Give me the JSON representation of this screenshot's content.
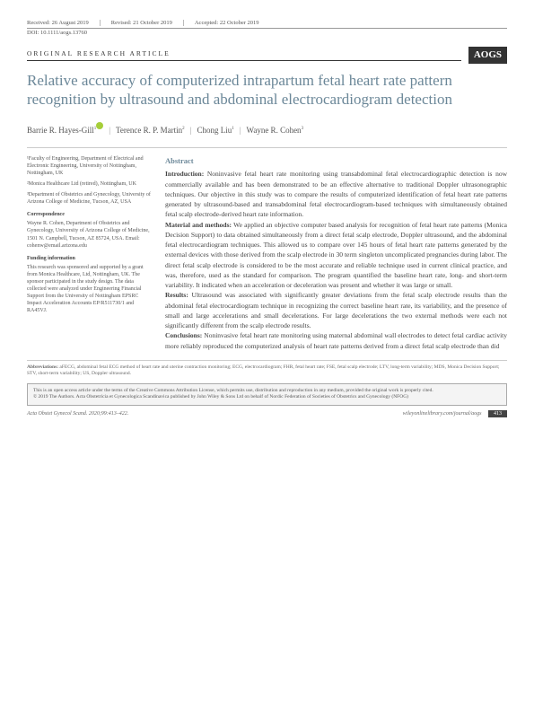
{
  "header": {
    "received": "Received: 26 August 2019",
    "revised": "Revised: 21 October 2019",
    "accepted": "Accepted: 22 October 2019",
    "doi": "DOI: 10.1111/aogs.13760"
  },
  "article_type": "ORIGINAL RESEARCH ARTICLE",
  "badge": {
    "acronym": "AOGS",
    "sub": ""
  },
  "title": "Relative accuracy of computerized intrapartum fetal heart rate pattern recognition by ultrasound and abdominal electrocardiogram detection",
  "authors": [
    {
      "name": "Barrie R. Hayes-Gill",
      "sup": "1",
      "orcid": true
    },
    {
      "name": "Terence R. P. Martin",
      "sup": "2"
    },
    {
      "name": "Chong Liu",
      "sup": "1"
    },
    {
      "name": "Wayne R. Cohen",
      "sup": "3"
    }
  ],
  "affiliations": [
    "¹Faculty of Engineering, Department of Electrical and Electronic Engineering, University of Nottingham, Nottingham, UK",
    "²Monica Healthcare Ltd (retired), Nottingham, UK",
    "³Department of Obstetrics and Gynecology, University of Arizona College of Medicine, Tucson, AZ, USA"
  ],
  "correspondence_head": "Correspondence",
  "correspondence": "Wayne R. Cohen, Department of Obstetrics and Gynecology, University of Arizona College of Medicine, 1501 N. Campbell, Tucson, AZ 85724, USA. Email: cohenw@email.arizona.edu",
  "funding_head": "Funding information",
  "funding": "This research was sponsored and supported by a grant from Monica Healthcare, Ltd, Nottingham, UK. The sponsor participated in the study design. The data collected were analyzed under Engineering Financial Support from the University of Nottingham EPSRC Impact Acceleration Accounts EP/R511730/1 and RA45VJ.",
  "abstract": {
    "head": "Abstract",
    "intro_label": "Introduction:",
    "intro": " Noninvasive fetal heart rate monitoring using transabdominal fetal electrocardiographic detection is now commercially available and has been demonstrated to be an effective alternative to traditional Doppler ultrasonographic techniques. Our objective in this study was to compare the results of computerized identification of fetal heart rate patterns generated by ultrasound-based and transabdominal fetal electrocardiogram-based techniques with simultaneously obtained fetal scalp electrode-derived heart rate information.",
    "methods_label": "Material and methods:",
    "methods": " We applied an objective computer based analysis for recognition of fetal heart rate patterns (Monica Decision Support) to data obtained simultaneously from a direct fetal scalp electrode, Doppler ultrasound, and the abdominal fetal electrocardiogram techniques. This allowed us to compare over 145 hours of fetal heart rate patterns generated by the external devices with those derived from the scalp electrode in 30 term singleton uncomplicated pregnancies during labor. The direct fetal scalp electrode is considered to be the most accurate and reliable technique used in current clinical practice, and was, therefore, used as the standard for comparison. The program quantified the baseline heart rate, long- and short-term variability. It indicated when an acceleration or deceleration was present and whether it was large or small.",
    "results_label": "Results:",
    "results": " Ultrasound was associated with significantly greater deviations from the fetal scalp electrode results than the abdominal fetal electrocardiogram technique in recognizing the correct baseline heart rate, its variability, and the presence of small and large accelerations and small decelerations. For large decelerations the two external methods were each not significantly different from the scalp electrode results.",
    "conclusions_label": "Conclusions:",
    "conclusions": " Noninvasive fetal heart rate monitoring using maternal abdominal wall electrodes to detect fetal cardiac activity more reliably reproduced the computerized analysis of heart rate patterns derived from a direct fetal scalp electrode than did"
  },
  "abbrev_label": "Abbreviations:",
  "abbrev": " aFECG, abdominal fetal ECG method of heart rate and uterine contraction monitoring; ECG, electrocardiogram; FHR, fetal heart rate; FSE, fetal scalp electrode; LTV, long-term variability; MDS, Monica Decision Support; STV, short-term variability; US, Doppler ultrasound.",
  "license1": "This is an open access article under the terms of the Creative Commons Attribution License, which permits use, distribution and reproduction in any medium, provided the original work is properly cited.",
  "license2": "© 2019 The Authors. Acta Obstetricia et Gynecologica Scandinavica published by John Wiley & Sons Ltd on behalf of Nordic Federation of Societies of Obstetrics and Gynecology (NFOG)",
  "footer": {
    "left": "Acta Obstet Gynecol Scand. 2020;99:413–422.",
    "right": "wileyonlinelibrary.com/journal/aogs",
    "page": "413"
  }
}
